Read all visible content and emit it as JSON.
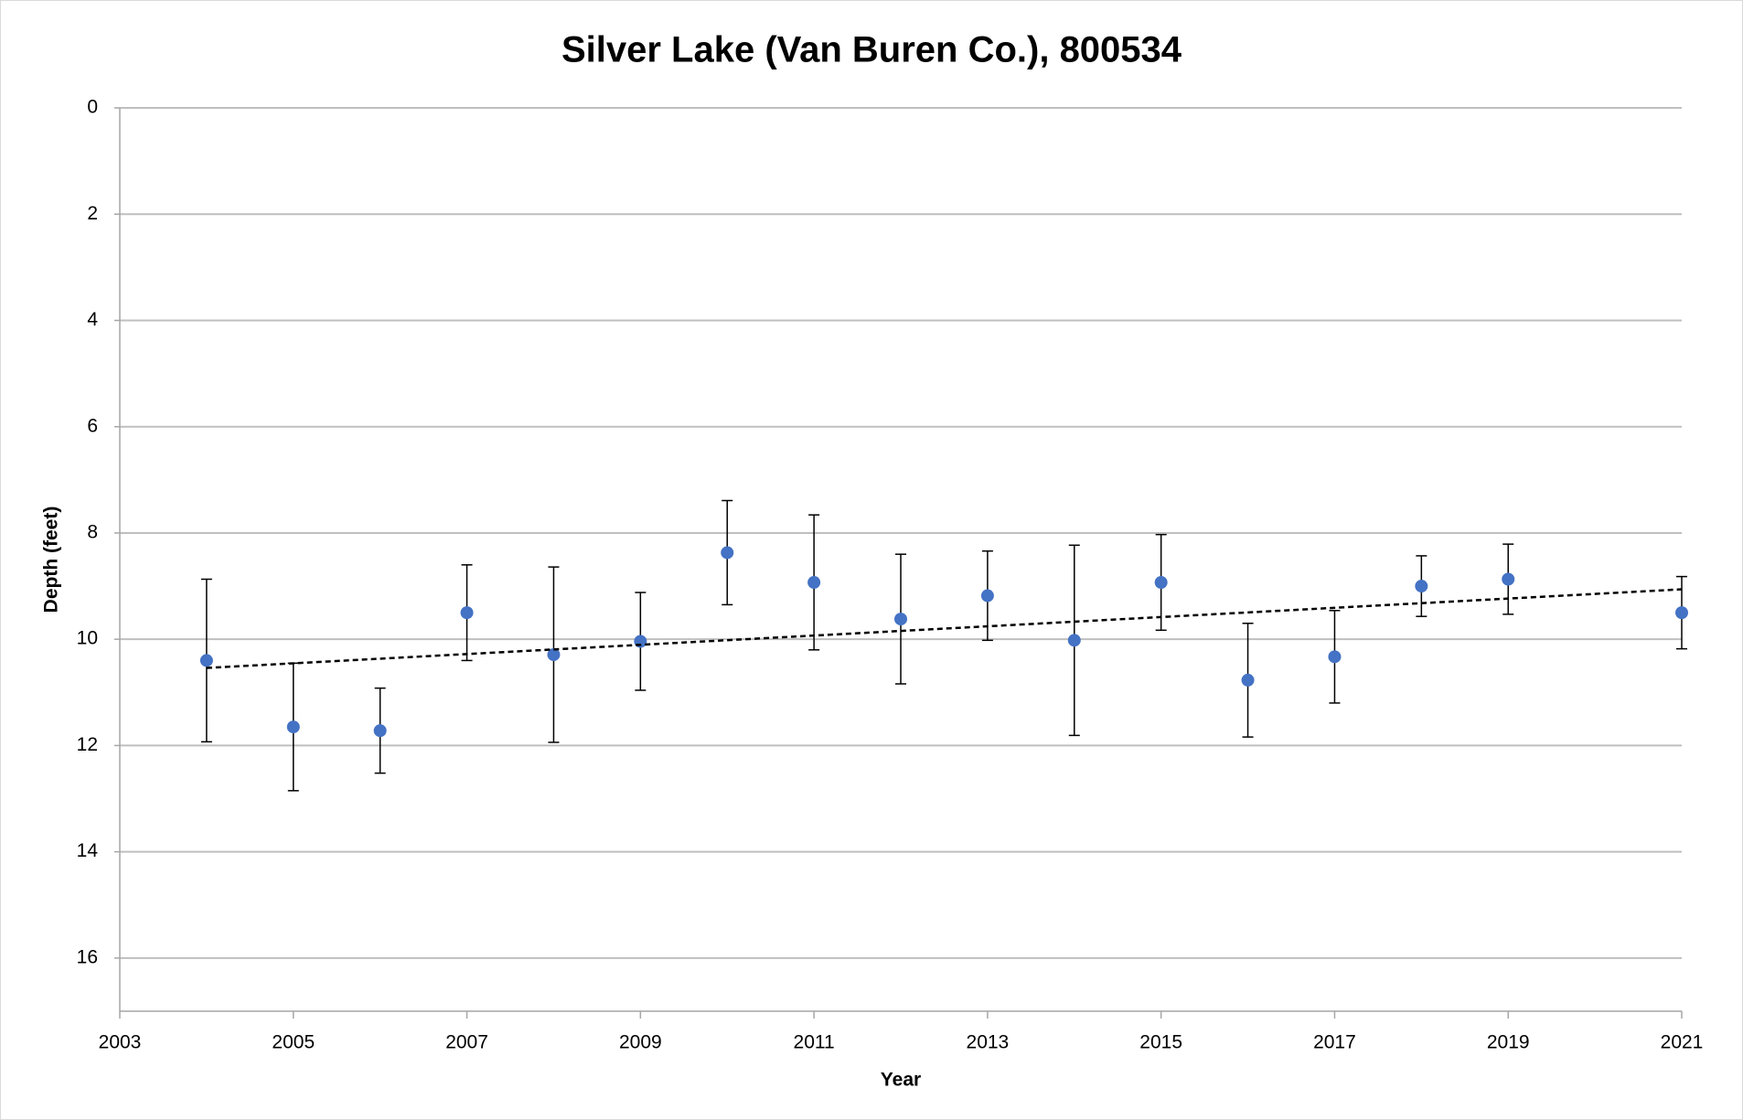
{
  "chart_data": {
    "type": "scatter",
    "title": "Silver Lake (Van Buren Co.), 800534",
    "x_label": "Year",
    "y_label": "Depth (feet)",
    "xlim": [
      2003,
      2021
    ],
    "xticks": [
      2003,
      2005,
      2007,
      2009,
      2011,
      2013,
      2015,
      2017,
      2019,
      2021
    ],
    "ylim": [
      0,
      17
    ],
    "yticks": [
      0,
      2,
      4,
      6,
      8,
      10,
      12,
      14,
      16
    ],
    "y_inverted": true,
    "grid": true,
    "series": [
      {
        "color": "#4472c4",
        "x": [
          2004,
          2005,
          2006,
          2007,
          2008,
          2009,
          2010,
          2011,
          2012,
          2013,
          2014,
          2015,
          2016,
          2017,
          2018,
          2019,
          2021
        ],
        "values": [
          10.4,
          11.65,
          11.72,
          9.5,
          10.29,
          10.04,
          8.37,
          8.93,
          9.62,
          9.18,
          10.02,
          8.93,
          10.77,
          10.33,
          9.0,
          8.87,
          9.5
        ],
        "errors": [
          1.53,
          1.2,
          0.8,
          0.9,
          1.65,
          0.92,
          0.98,
          1.27,
          1.22,
          0.84,
          1.79,
          0.9,
          1.07,
          0.87,
          0.57,
          0.66,
          0.68
        ]
      }
    ],
    "trendline": {
      "color": "#000000",
      "x": [
        2004,
        2021
      ],
      "values": [
        10.54,
        9.06
      ]
    }
  }
}
